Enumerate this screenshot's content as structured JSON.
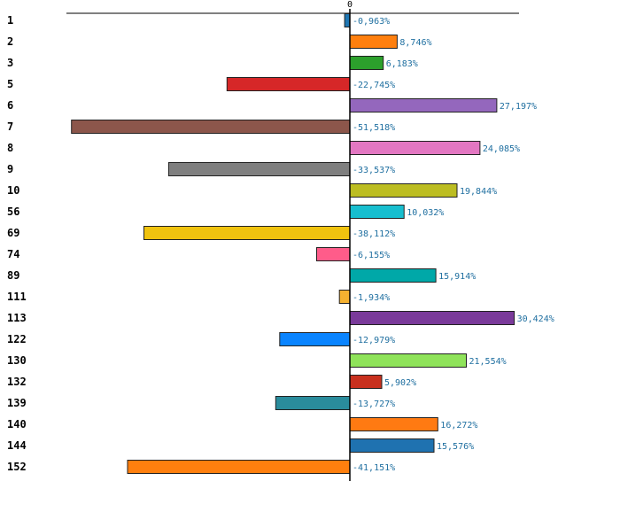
{
  "chart_data": {
    "type": "bar",
    "orientation": "horizontal",
    "title": "",
    "xlabel": "",
    "ylabel": "",
    "zero_tick_label": "0",
    "xlim": [
      -53,
      33
    ],
    "grid": false,
    "legend": "none",
    "categories": [
      "1",
      "2",
      "3",
      "5",
      "6",
      "7",
      "8",
      "9",
      "10",
      "56",
      "69",
      "74",
      "89",
      "111",
      "113",
      "122",
      "130",
      "132",
      "139",
      "140",
      "144",
      "152"
    ],
    "values": [
      -0.963,
      8.746,
      6.183,
      -22.745,
      27.197,
      -51.518,
      24.085,
      -33.537,
      19.844,
      10.032,
      -38.112,
      -6.155,
      15.914,
      -1.934,
      30.424,
      -12.979,
      21.554,
      5.902,
      -13.727,
      16.272,
      15.576,
      -41.151
    ],
    "value_labels": [
      "-0,963%",
      "8,746%",
      "6,183%",
      "-22,745%",
      "27,197%",
      "-51,518%",
      "24,085%",
      "-33,537%",
      "19,844%",
      "10,032%",
      "-38,112%",
      "-6,155%",
      "15,914%",
      "-1,934%",
      "30,424%",
      "-12,979%",
      "21,554%",
      "5,902%",
      "-13,727%",
      "16,272%",
      "15,576%",
      "-41,151%"
    ],
    "colors": [
      "#1f77b4",
      "#ff7f0e",
      "#2ca02c",
      "#d62728",
      "#9467bd",
      "#8c564b",
      "#e377c2",
      "#7f7f7f",
      "#bcbd22",
      "#17becf",
      "#f0c30f",
      "#ff5c8a",
      "#00a8a8",
      "#f5b130",
      "#7a3a9a",
      "#0a84ff",
      "#8fe35a",
      "#c8301e",
      "#2a8c9c",
      "#ff7a12",
      "#1f72b0",
      "#ff7f0e"
    ],
    "value_label_color": "#1f6fa0",
    "axis_color": "#000000"
  }
}
